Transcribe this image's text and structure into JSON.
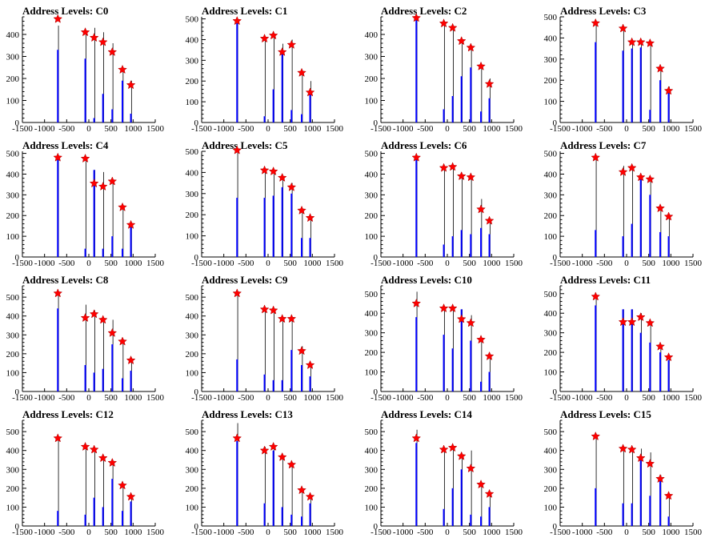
{
  "xlim": [
    -1500,
    1500
  ],
  "ylim": [
    0,
    500
  ],
  "xticks": [
    -1500,
    -1000,
    -500,
    0,
    500,
    1000,
    1500
  ],
  "yticks": [
    0,
    100,
    200,
    300,
    400,
    500
  ],
  "colors": {
    "bar": "#0000ff",
    "spike": "#000000",
    "marker": "#ff0000",
    "axis": "#000000"
  },
  "chart_data": [
    {
      "type": "bar",
      "title": "Address Levels: C0",
      "ylim": [
        0,
        480
      ],
      "peaks_x": [
        -700,
        -80,
        120,
        320,
        530,
        760,
        950
      ],
      "peaks_y": [
        470,
        410,
        385,
        365,
        320,
        240,
        170
      ],
      "bars": [
        [
          -700,
          330
        ],
        [
          -80,
          290
        ],
        [
          120,
          20
        ],
        [
          320,
          130
        ],
        [
          530,
          60
        ],
        [
          760,
          190
        ],
        [
          950,
          40
        ]
      ],
      "spikes": [
        [
          -700,
          440
        ],
        [
          -80,
          410
        ],
        [
          120,
          430
        ],
        [
          320,
          410
        ],
        [
          530,
          360
        ],
        [
          760,
          245
        ],
        [
          950,
          190
        ]
      ]
    },
    {
      "type": "bar",
      "title": "Address Levels: C1",
      "ylim": [
        0,
        510
      ],
      "peaks_x": [
        -700,
        -80,
        120,
        320,
        530,
        760,
        950
      ],
      "peaks_y": [
        490,
        405,
        420,
        340,
        375,
        240,
        145
      ],
      "bars": [
        [
          -700,
          480
        ],
        [
          -80,
          30
        ],
        [
          120,
          160
        ],
        [
          320,
          350
        ],
        [
          530,
          60
        ],
        [
          760,
          40
        ],
        [
          950,
          140
        ]
      ],
      "spikes": [
        [
          -700,
          480
        ],
        [
          -80,
          400
        ],
        [
          120,
          420
        ],
        [
          320,
          380
        ],
        [
          530,
          400
        ],
        [
          760,
          240
        ],
        [
          950,
          200
        ]
      ]
    },
    {
      "type": "bar",
      "title": "Address Levels: C2",
      "ylim": [
        0,
        480
      ],
      "peaks_x": [
        -700,
        -80,
        120,
        320,
        530,
        760,
        950
      ],
      "peaks_y": [
        475,
        450,
        430,
        370,
        340,
        255,
        175
      ],
      "bars": [
        [
          -700,
          470
        ],
        [
          -80,
          60
        ],
        [
          120,
          120
        ],
        [
          320,
          210
        ],
        [
          530,
          250
        ],
        [
          760,
          50
        ],
        [
          950,
          110
        ]
      ],
      "spikes": [
        [
          -700,
          470
        ],
        [
          -80,
          450
        ],
        [
          120,
          430
        ],
        [
          320,
          370
        ],
        [
          530,
          330
        ],
        [
          760,
          250
        ],
        [
          950,
          200
        ]
      ]
    },
    {
      "type": "bar",
      "title": "Address Levels: C3",
      "ylim": [
        0,
        500
      ],
      "peaks_x": [
        -700,
        -80,
        120,
        320,
        530,
        760,
        950
      ],
      "peaks_y": [
        470,
        445,
        380,
        380,
        375,
        255,
        150
      ],
      "bars": [
        [
          -700,
          380
        ],
        [
          -80,
          340
        ],
        [
          120,
          350
        ],
        [
          320,
          355
        ],
        [
          530,
          60
        ],
        [
          760,
          200
        ],
        [
          950,
          140
        ]
      ],
      "spikes": [
        [
          -700,
          470
        ],
        [
          -80,
          440
        ],
        [
          120,
          380
        ],
        [
          320,
          390
        ],
        [
          530,
          370
        ],
        [
          760,
          250
        ],
        [
          950,
          170
        ]
      ]
    },
    {
      "type": "bar",
      "title": "Address Levels: C4",
      "ylim": [
        0,
        510
      ],
      "peaks_x": [
        -700,
        -80,
        120,
        320,
        530,
        760,
        950
      ],
      "peaks_y": [
        480,
        475,
        355,
        340,
        365,
        240,
        155
      ],
      "bars": [
        [
          -700,
          480
        ],
        [
          -80,
          40
        ],
        [
          120,
          420
        ],
        [
          320,
          40
        ],
        [
          530,
          100
        ],
        [
          760,
          40
        ],
        [
          950,
          150
        ]
      ],
      "spikes": [
        [
          -700,
          490
        ],
        [
          -80,
          480
        ],
        [
          120,
          420
        ],
        [
          320,
          410
        ],
        [
          530,
          370
        ],
        [
          760,
          240
        ],
        [
          950,
          160
        ]
      ]
    },
    {
      "type": "bar",
      "title": "Address Levels: C5",
      "ylim": [
        0,
        500
      ],
      "peaks_x": [
        -700,
        -80,
        120,
        320,
        530,
        760,
        950
      ],
      "peaks_y": [
        505,
        410,
        405,
        375,
        330,
        220,
        185
      ],
      "bars": [
        [
          -700,
          280
        ],
        [
          -80,
          280
        ],
        [
          120,
          290
        ],
        [
          320,
          330
        ],
        [
          530,
          300
        ],
        [
          760,
          90
        ],
        [
          950,
          90
        ]
      ],
      "spikes": [
        [
          -700,
          505
        ],
        [
          -80,
          410
        ],
        [
          120,
          405
        ],
        [
          320,
          375
        ],
        [
          530,
          350
        ],
        [
          760,
          220
        ],
        [
          950,
          185
        ]
      ]
    },
    {
      "type": "bar",
      "title": "Address Levels: C6",
      "ylim": [
        0,
        510
      ],
      "peaks_x": [
        -700,
        -80,
        120,
        320,
        530,
        760,
        950
      ],
      "peaks_y": [
        480,
        430,
        435,
        390,
        385,
        230,
        175
      ],
      "bars": [
        [
          -700,
          480
        ],
        [
          -80,
          60
        ],
        [
          120,
          100
        ],
        [
          320,
          130
        ],
        [
          530,
          110
        ],
        [
          760,
          140
        ],
        [
          950,
          110
        ]
      ],
      "spikes": [
        [
          -700,
          480
        ],
        [
          -80,
          430
        ],
        [
          120,
          435
        ],
        [
          320,
          390
        ],
        [
          530,
          390
        ],
        [
          760,
          280
        ],
        [
          950,
          180
        ]
      ]
    },
    {
      "type": "bar",
      "title": "Address Levels: C7",
      "ylim": [
        0,
        510
      ],
      "peaks_x": [
        -700,
        -80,
        120,
        320,
        530,
        760,
        950
      ],
      "peaks_y": [
        480,
        410,
        430,
        385,
        375,
        235,
        195
      ],
      "bars": [
        [
          -700,
          130
        ],
        [
          -80,
          100
        ],
        [
          120,
          160
        ],
        [
          320,
          380
        ],
        [
          530,
          300
        ],
        [
          760,
          120
        ],
        [
          950,
          100
        ]
      ],
      "spikes": [
        [
          -700,
          480
        ],
        [
          -80,
          440
        ],
        [
          120,
          430
        ],
        [
          320,
          390
        ],
        [
          530,
          380
        ],
        [
          760,
          240
        ],
        [
          950,
          200
        ]
      ]
    },
    {
      "type": "bar",
      "title": "Address Levels: C8",
      "ylim": [
        0,
        560
      ],
      "peaks_x": [
        -700,
        -80,
        120,
        320,
        530,
        760,
        950
      ],
      "peaks_y": [
        520,
        390,
        410,
        380,
        310,
        265,
        165
      ],
      "bars": [
        [
          -700,
          440
        ],
        [
          -80,
          140
        ],
        [
          120,
          100
        ],
        [
          320,
          120
        ],
        [
          530,
          250
        ],
        [
          760,
          70
        ],
        [
          950,
          110
        ]
      ],
      "spikes": [
        [
          -700,
          520
        ],
        [
          -80,
          460
        ],
        [
          120,
          430
        ],
        [
          320,
          390
        ],
        [
          530,
          380
        ],
        [
          760,
          280
        ],
        [
          950,
          180
        ]
      ]
    },
    {
      "type": "bar",
      "title": "Address Levels: C9",
      "ylim": [
        0,
        560
      ],
      "peaks_x": [
        -700,
        -80,
        120,
        320,
        530,
        760,
        950
      ],
      "peaks_y": [
        520,
        435,
        430,
        385,
        385,
        215,
        140
      ],
      "bars": [
        [
          -700,
          170
        ],
        [
          -80,
          90
        ],
        [
          120,
          60
        ],
        [
          320,
          60
        ],
        [
          530,
          220
        ],
        [
          760,
          140
        ],
        [
          950,
          80
        ]
      ],
      "spikes": [
        [
          -700,
          520
        ],
        [
          -80,
          440
        ],
        [
          120,
          430
        ],
        [
          320,
          390
        ],
        [
          530,
          390
        ],
        [
          760,
          240
        ],
        [
          950,
          150
        ]
      ]
    },
    {
      "type": "bar",
      "title": "Address Levels: C10",
      "ylim": [
        0,
        540
      ],
      "peaks_x": [
        -700,
        -80,
        120,
        320,
        530,
        760,
        950
      ],
      "peaks_y": [
        450,
        425,
        425,
        370,
        350,
        265,
        180
      ],
      "bars": [
        [
          -700,
          380
        ],
        [
          -80,
          290
        ],
        [
          120,
          220
        ],
        [
          320,
          420
        ],
        [
          530,
          260
        ],
        [
          760,
          50
        ],
        [
          950,
          100
        ]
      ],
      "spikes": [
        [
          -700,
          510
        ],
        [
          -80,
          425
        ],
        [
          120,
          425
        ],
        [
          320,
          420
        ],
        [
          530,
          390
        ],
        [
          760,
          265
        ],
        [
          950,
          180
        ]
      ]
    },
    {
      "type": "bar",
      "title": "Address Levels: C11",
      "ylim": [
        0,
        540
      ],
      "peaks_x": [
        -700,
        -80,
        120,
        320,
        530,
        760,
        950
      ],
      "peaks_y": [
        485,
        355,
        355,
        380,
        350,
        230,
        175
      ],
      "bars": [
        [
          -700,
          440
        ],
        [
          -80,
          420
        ],
        [
          120,
          420
        ],
        [
          320,
          300
        ],
        [
          530,
          250
        ],
        [
          760,
          200
        ],
        [
          950,
          160
        ]
      ],
      "spikes": [
        [
          -700,
          500
        ],
        [
          -80,
          420
        ],
        [
          120,
          420
        ],
        [
          320,
          400
        ],
        [
          530,
          360
        ],
        [
          760,
          240
        ],
        [
          950,
          180
        ]
      ]
    },
    {
      "type": "bar",
      "title": "Address Levels: C12",
      "ylim": [
        0,
        560
      ],
      "peaks_x": [
        -700,
        -80,
        120,
        320,
        530,
        760,
        950
      ],
      "peaks_y": [
        465,
        420,
        405,
        360,
        335,
        215,
        155
      ],
      "bars": [
        [
          -700,
          80
        ],
        [
          -80,
          60
        ],
        [
          120,
          150
        ],
        [
          320,
          100
        ],
        [
          530,
          250
        ],
        [
          760,
          80
        ],
        [
          950,
          130
        ]
      ],
      "spikes": [
        [
          -700,
          470
        ],
        [
          -80,
          420
        ],
        [
          120,
          400
        ],
        [
          320,
          360
        ],
        [
          530,
          340
        ],
        [
          760,
          220
        ],
        [
          950,
          160
        ]
      ]
    },
    {
      "type": "bar",
      "title": "Address Levels: C13",
      "ylim": [
        0,
        560
      ],
      "peaks_x": [
        -700,
        -80,
        120,
        320,
        530,
        760,
        950
      ],
      "peaks_y": [
        465,
        400,
        420,
        365,
        325,
        190,
        155
      ],
      "bars": [
        [
          -700,
          450
        ],
        [
          -80,
          120
        ],
        [
          120,
          400
        ],
        [
          320,
          100
        ],
        [
          530,
          60
        ],
        [
          760,
          50
        ],
        [
          950,
          120
        ]
      ],
      "spikes": [
        [
          -700,
          545
        ],
        [
          -80,
          420
        ],
        [
          120,
          420
        ],
        [
          320,
          370
        ],
        [
          530,
          340
        ],
        [
          760,
          190
        ],
        [
          950,
          160
        ]
      ]
    },
    {
      "type": "bar",
      "title": "Address Levels: C14",
      "ylim": [
        0,
        560
      ],
      "peaks_x": [
        -700,
        -80,
        120,
        320,
        530,
        760,
        950
      ],
      "peaks_y": [
        465,
        405,
        415,
        370,
        305,
        220,
        170
      ],
      "bars": [
        [
          -700,
          440
        ],
        [
          -80,
          90
        ],
        [
          120,
          200
        ],
        [
          320,
          300
        ],
        [
          530,
          60
        ],
        [
          760,
          50
        ],
        [
          950,
          100
        ]
      ],
      "spikes": [
        [
          -700,
          510
        ],
        [
          -80,
          410
        ],
        [
          120,
          420
        ],
        [
          320,
          380
        ],
        [
          530,
          400
        ],
        [
          760,
          230
        ],
        [
          950,
          170
        ]
      ]
    },
    {
      "type": "bar",
      "title": "Address Levels: C15",
      "ylim": [
        0,
        560
      ],
      "peaks_x": [
        -700,
        -80,
        120,
        320,
        530,
        760,
        950
      ],
      "peaks_y": [
        475,
        410,
        405,
        360,
        330,
        250,
        160
      ],
      "bars": [
        [
          -700,
          200
        ],
        [
          -80,
          120
        ],
        [
          120,
          120
        ],
        [
          320,
          360
        ],
        [
          530,
          160
        ],
        [
          760,
          250
        ],
        [
          950,
          50
        ]
      ],
      "spikes": [
        [
          -700,
          480
        ],
        [
          -80,
          420
        ],
        [
          120,
          420
        ],
        [
          320,
          410
        ],
        [
          530,
          390
        ],
        [
          760,
          270
        ],
        [
          950,
          170
        ]
      ]
    }
  ]
}
